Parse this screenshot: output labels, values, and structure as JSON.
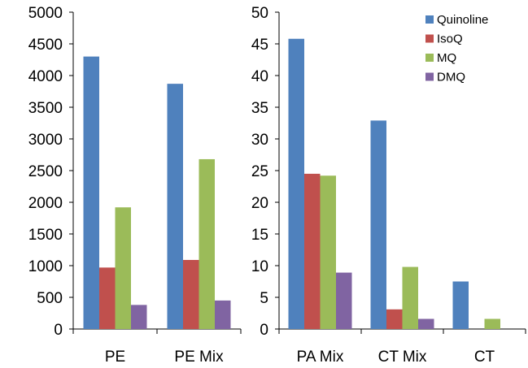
{
  "colors": {
    "Quinoline": "#4F81BD",
    "IsoQ": "#C0504D",
    "MQ": "#9BBB59",
    "DMQ": "#8064A2"
  },
  "legend": {
    "placement": "top-right",
    "entries": [
      "Quinoline",
      "IsoQ",
      "MQ",
      "DMQ"
    ]
  },
  "chart_data": [
    {
      "type": "bar",
      "title": "",
      "xlabel": "",
      "ylabel": "",
      "categories": [
        "PE",
        "PE Mix"
      ],
      "ylim": [
        0,
        5000
      ],
      "yticks": [
        0,
        500,
        1000,
        1500,
        2000,
        2500,
        3000,
        3500,
        4000,
        4500,
        5000
      ],
      "series": [
        {
          "name": "Quinoline",
          "values": [
            4300,
            3870
          ]
        },
        {
          "name": "IsoQ",
          "values": [
            970,
            1090
          ]
        },
        {
          "name": "MQ",
          "values": [
            1920,
            2680
          ]
        },
        {
          "name": "DMQ",
          "values": [
            380,
            450
          ]
        }
      ]
    },
    {
      "type": "bar",
      "title": "",
      "xlabel": "",
      "ylabel": "",
      "categories": [
        "PA Mix",
        "CT Mix",
        "CT"
      ],
      "ylim": [
        0,
        50
      ],
      "yticks": [
        0,
        5,
        10,
        15,
        20,
        25,
        30,
        35,
        40,
        45,
        50
      ],
      "series": [
        {
          "name": "Quinoline",
          "values": [
            45.8,
            32.9,
            7.5
          ]
        },
        {
          "name": "IsoQ",
          "values": [
            24.5,
            3.1,
            0
          ]
        },
        {
          "name": "MQ",
          "values": [
            24.2,
            9.8,
            1.6
          ]
        },
        {
          "name": "DMQ",
          "values": [
            8.9,
            1.6,
            0
          ]
        }
      ]
    }
  ]
}
